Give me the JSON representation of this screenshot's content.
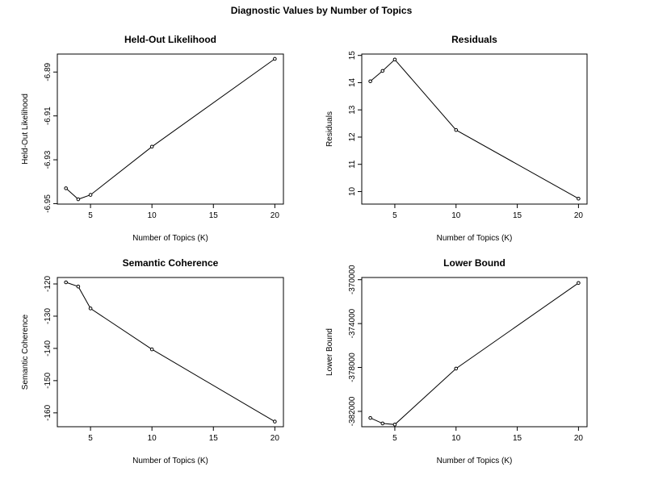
{
  "figure": {
    "title": "Diagnostic Values by Number of Topics"
  },
  "chart_data": [
    {
      "type": "line",
      "title": "Held-Out Likelihood",
      "xlabel": "Number of Topics (K)",
      "ylabel": "Held-Out Likelihood",
      "x": [
        3,
        4,
        5,
        10,
        20
      ],
      "series": [
        {
          "values": [
            -6.943,
            -6.948,
            -6.946,
            -6.924,
            -6.884
          ]
        }
      ],
      "xticks": [
        5,
        10,
        15,
        20
      ],
      "yticks": [
        -6.95,
        -6.93,
        -6.91,
        -6.89
      ],
      "ytick_labels": [
        "-6.95",
        "-6.93",
        "-6.91",
        "-6.89"
      ],
      "xlim": [
        2.3,
        20.7
      ],
      "ylim": [
        -6.9502,
        -6.8818
      ],
      "marker": "open-circle",
      "grid": false
    },
    {
      "type": "line",
      "title": "Residuals",
      "xlabel": "Number of Topics (K)",
      "ylabel": "Residuals",
      "x": [
        3,
        4,
        5,
        10,
        20
      ],
      "series": [
        {
          "values": [
            14.05,
            14.43,
            14.85,
            12.26,
            9.74
          ]
        }
      ],
      "xticks": [
        5,
        10,
        15,
        20
      ],
      "yticks": [
        10,
        11,
        12,
        13,
        14,
        15
      ],
      "ytick_labels": [
        "10",
        "11",
        "12",
        "13",
        "14",
        "15"
      ],
      "xlim": [
        2.3,
        20.7
      ],
      "ylim": [
        9.54,
        15.05
      ],
      "marker": "open-circle",
      "grid": false
    },
    {
      "type": "line",
      "title": "Semantic Coherence",
      "xlabel": "Number of Topics (K)",
      "ylabel": "Semantic Coherence",
      "x": [
        3,
        4,
        5,
        10,
        20
      ],
      "series": [
        {
          "values": [
            -119.5,
            -120.8,
            -127.6,
            -140.3,
            -162.7
          ]
        }
      ],
      "xticks": [
        5,
        10,
        15,
        20
      ],
      "yticks": [
        -160,
        -150,
        -140,
        -130,
        -120
      ],
      "ytick_labels": [
        "-160",
        "-150",
        "-140",
        "-130",
        "-120"
      ],
      "xlim": [
        2.3,
        20.7
      ],
      "ylim": [
        -164.3,
        -118.0
      ],
      "marker": "open-circle",
      "grid": false
    },
    {
      "type": "line",
      "title": "Lower Bound",
      "xlabel": "Number of Topics (K)",
      "ylabel": "Lower Bound",
      "x": [
        3,
        4,
        5,
        10,
        20
      ],
      "series": [
        {
          "values": [
            -382600,
            -383100,
            -383200,
            -378100,
            -370300
          ]
        }
      ],
      "xticks": [
        5,
        10,
        15,
        20
      ],
      "yticks": [
        -382000,
        -378000,
        -374000,
        -370000
      ],
      "ytick_labels": [
        "-382000",
        "-378000",
        "-374000",
        "-370000"
      ],
      "xlim": [
        2.3,
        20.7
      ],
      "ylim": [
        -383400,
        -369800
      ],
      "marker": "open-circle",
      "grid": false
    }
  ]
}
